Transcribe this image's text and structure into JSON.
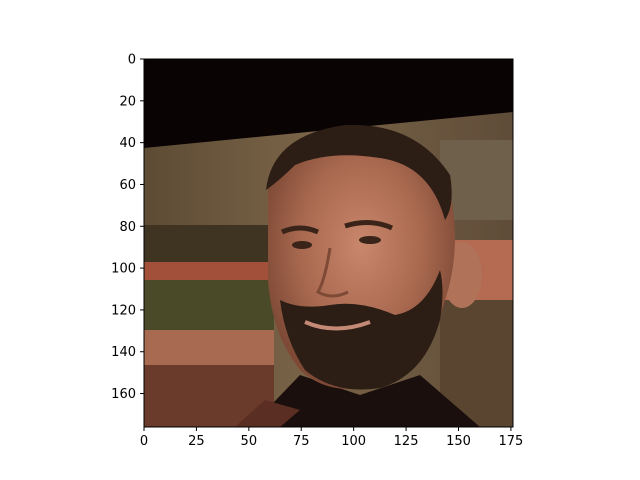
{
  "image": {
    "kind": "photo",
    "subject": "head-and-shoulders portrait of a bearded man",
    "colors": {
      "top_band": "#0a0304",
      "background_mid": "#6b5a44",
      "background_dark": "#3f3322",
      "skin": "#b0735a",
      "skin_shadow": "#7e4a36",
      "hair_beard": "#2c1d15",
      "collar": "#1a0f0c",
      "stripe_red": "#a2503a",
      "stripe_green": "#4b4a28"
    }
  },
  "chart_data": {
    "type": "image",
    "xlim": [
      0,
      176
    ],
    "ylim": [
      176,
      0
    ],
    "x_ticks": [
      "0",
      "25",
      "50",
      "75",
      "100",
      "125",
      "150",
      "175"
    ],
    "y_ticks": [
      "0",
      "20",
      "40",
      "60",
      "80",
      "100",
      "120",
      "140",
      "160"
    ],
    "x_tick_values": [
      0,
      25,
      50,
      75,
      100,
      125,
      150,
      175
    ],
    "y_tick_values": [
      0,
      20,
      40,
      60,
      80,
      100,
      120,
      140,
      160
    ],
    "grid": false
  }
}
